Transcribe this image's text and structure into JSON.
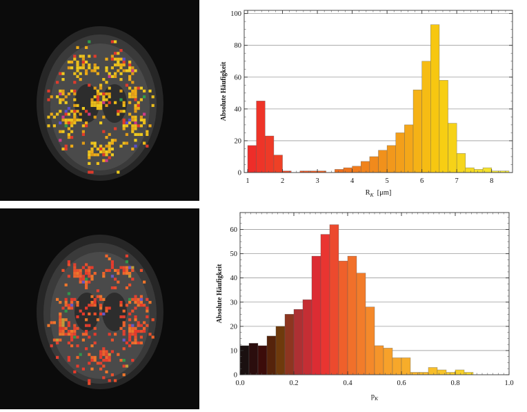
{
  "figure": {
    "top_brain_caption": "Axial slice overlay colored by R_K",
    "bottom_brain_caption": "Axial slice overlay colored by p_K"
  },
  "chart_data": [
    {
      "type": "bar",
      "ylabel": "Absolute Häufigkeit",
      "xlabel_main": "R",
      "xlabel_sub": "K",
      "xlabel_unit": "[μm]",
      "xlim": [
        0.9,
        8.6
      ],
      "ylim": [
        0,
        102
      ],
      "xticks": [
        1,
        2,
        3,
        4,
        5,
        6,
        7,
        8
      ],
      "yticks": [
        0,
        20,
        40,
        60,
        80,
        100
      ],
      "grid": "horizontal",
      "bin_width": 0.25,
      "bins": [
        {
          "x": 1.0,
          "v": 17
        },
        {
          "x": 1.25,
          "v": 45
        },
        {
          "x": 1.5,
          "v": 23
        },
        {
          "x": 1.75,
          "v": 11
        },
        {
          "x": 2.0,
          "v": 1
        },
        {
          "x": 2.5,
          "v": 1
        },
        {
          "x": 2.75,
          "v": 1
        },
        {
          "x": 3.0,
          "v": 1
        },
        {
          "x": 3.5,
          "v": 2
        },
        {
          "x": 3.75,
          "v": 3
        },
        {
          "x": 4.0,
          "v": 4
        },
        {
          "x": 4.25,
          "v": 7
        },
        {
          "x": 4.5,
          "v": 10
        },
        {
          "x": 4.75,
          "v": 14
        },
        {
          "x": 5.0,
          "v": 17
        },
        {
          "x": 5.25,
          "v": 25
        },
        {
          "x": 5.5,
          "v": 30
        },
        {
          "x": 5.75,
          "v": 52
        },
        {
          "x": 6.0,
          "v": 70
        },
        {
          "x": 6.25,
          "v": 93
        },
        {
          "x": 6.5,
          "v": 58
        },
        {
          "x": 6.75,
          "v": 31
        },
        {
          "x": 7.0,
          "v": 12
        },
        {
          "x": 7.25,
          "v": 3
        },
        {
          "x": 7.5,
          "v": 2
        },
        {
          "x": 7.75,
          "v": 3
        },
        {
          "x": 8.0,
          "v": 1
        },
        {
          "x": 8.25,
          "v": 1
        }
      ],
      "colormap": [
        {
          "t": 1.0,
          "color": "#ee2a2a"
        },
        {
          "t": 3.5,
          "color": "#ee6a1e"
        },
        {
          "t": 5.5,
          "color": "#f3a21a"
        },
        {
          "t": 6.5,
          "color": "#f7cc10"
        },
        {
          "t": 8.5,
          "color": "#f4ec3a"
        }
      ]
    },
    {
      "type": "bar",
      "ylabel": "Absolute Häufigkeit",
      "xlabel_main": "p",
      "xlabel_sub": "K",
      "xlim": [
        0.0,
        1.0
      ],
      "ylim": [
        0,
        67
      ],
      "xticks": [
        0.0,
        0.2,
        0.4,
        0.6,
        0.8,
        1.0
      ],
      "xtick_labels": [
        "0.0",
        "0.2",
        "0.4",
        "0.6",
        "0.8",
        "1.0"
      ],
      "yticks": [
        0,
        10,
        20,
        30,
        40,
        50,
        60
      ],
      "grid": "horizontal",
      "bin_width": 0.0333,
      "bins": [
        {
          "x": 0.0,
          "v": 12
        },
        {
          "x": 0.0333,
          "v": 13
        },
        {
          "x": 0.0667,
          "v": 12
        },
        {
          "x": 0.1,
          "v": 16
        },
        {
          "x": 0.1333,
          "v": 20
        },
        {
          "x": 0.1667,
          "v": 25
        },
        {
          "x": 0.2,
          "v": 27
        },
        {
          "x": 0.2333,
          "v": 31
        },
        {
          "x": 0.2667,
          "v": 49
        },
        {
          "x": 0.3,
          "v": 58
        },
        {
          "x": 0.3333,
          "v": 62
        },
        {
          "x": 0.3667,
          "v": 47
        },
        {
          "x": 0.4,
          "v": 49
        },
        {
          "x": 0.4333,
          "v": 42
        },
        {
          "x": 0.4667,
          "v": 28
        },
        {
          "x": 0.5,
          "v": 12
        },
        {
          "x": 0.5333,
          "v": 11
        },
        {
          "x": 0.5667,
          "v": 7
        },
        {
          "x": 0.6,
          "v": 7
        },
        {
          "x": 0.6333,
          "v": 1
        },
        {
          "x": 0.6667,
          "v": 1
        },
        {
          "x": 0.7,
          "v": 3
        },
        {
          "x": 0.7333,
          "v": 2
        },
        {
          "x": 0.7667,
          "v": 1
        },
        {
          "x": 0.8,
          "v": 2
        },
        {
          "x": 0.8333,
          "v": 1
        }
      ],
      "colormap": [
        {
          "t": 0.0,
          "color": "#111111"
        },
        {
          "t": 0.08,
          "color": "#3a0a0a"
        },
        {
          "t": 0.15,
          "color": "#6e3a0c"
        },
        {
          "t": 0.22,
          "color": "#b03035"
        },
        {
          "t": 0.3,
          "color": "#e82b32"
        },
        {
          "t": 0.4,
          "color": "#f06a2a"
        },
        {
          "t": 0.55,
          "color": "#f7a12a"
        },
        {
          "t": 0.85,
          "color": "#f8d62a"
        }
      ]
    }
  ]
}
